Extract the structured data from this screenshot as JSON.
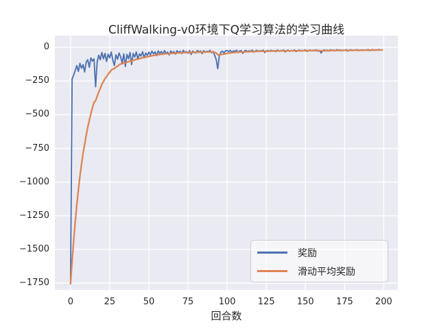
{
  "figure": {
    "background": "#ffffff",
    "axes_background": "#eaeaf2",
    "grid_color": "#ffffff",
    "text_color": "#262626"
  },
  "chart_data": {
    "type": "line",
    "title": "CliffWalking-v0环境下Q学习算法的学习曲线",
    "xlabel": "回合数",
    "ylabel": "",
    "grid": true,
    "legend_position": "lower right",
    "xlim": [
      -10,
      209
    ],
    "ylim": [
      -1800,
      87
    ],
    "xtick_values": [
      0,
      25,
      50,
      75,
      100,
      125,
      150,
      175,
      200
    ],
    "xtick_labels": [
      "0",
      "25",
      "50",
      "75",
      "100",
      "125",
      "150",
      "175",
      "200"
    ],
    "ytick_values": [
      0,
      -250,
      -500,
      -750,
      -1000,
      -1250,
      -1500,
      -1750
    ],
    "ytick_labels": [
      "0",
      "−250",
      "−500",
      "−750",
      "−1000",
      "−1250",
      "−1500",
      "−1750"
    ],
    "x_start": 0,
    "x_step": 1,
    "series": [
      {
        "name": "奖励",
        "color": "#4c72b0",
        "values": [
          -1755,
          -236,
          -205,
          -172,
          -135,
          -178,
          -118,
          -155,
          -128,
          -182,
          -108,
          -92,
          -148,
          -78,
          -102,
          -85,
          -292,
          -108,
          -58,
          -92,
          -38,
          -85,
          -45,
          -105,
          -50,
          -78,
          -35,
          -95,
          -135,
          -55,
          -88,
          -42,
          -70,
          -118,
          -48,
          -142,
          -52,
          -85,
          -38,
          -128,
          -45,
          -72,
          -34,
          -90,
          -48,
          -65,
          -32,
          -78,
          -42,
          -60,
          -36,
          -55,
          -28,
          -48,
          -33,
          -62,
          -26,
          -45,
          -30,
          -52,
          -24,
          -44,
          -35,
          -56,
          -27,
          -42,
          -31,
          -50,
          -25,
          -40,
          -29,
          -46,
          -22,
          -38,
          -31,
          -44,
          -24,
          -52,
          -28,
          -36,
          -42,
          -23,
          -34,
          -27,
          -46,
          -25,
          -38,
          -29,
          -33,
          -22,
          -40,
          -30,
          -58,
          -90,
          -158,
          -64,
          -36,
          -28,
          -42,
          -25,
          -24,
          -31,
          -22,
          -36,
          -26,
          -30,
          -21,
          -38,
          -27,
          -24,
          -45,
          -28,
          -22,
          -33,
          -25,
          -30,
          -20,
          -35,
          -26,
          -22,
          -31,
          -24,
          -28,
          -20,
          -38,
          -26,
          -23,
          -30,
          -21,
          -27,
          -24,
          -32,
          -20,
          -28,
          -23,
          -26,
          -19,
          -34,
          -24,
          -21,
          -29,
          -23,
          -26,
          -19,
          -31,
          -24,
          -20,
          -27,
          -22,
          -25,
          -18,
          -30,
          -23,
          -20,
          -26,
          -21,
          -24,
          -18,
          -28,
          -22,
          -42,
          -25,
          -19,
          -24,
          -20,
          -27,
          -18,
          -23,
          -20,
          -25,
          -17,
          -22,
          -19,
          -26,
          -20,
          -23,
          -17,
          -28,
          -21,
          -18,
          -24,
          -19,
          -22,
          -17,
          -25,
          -20,
          -18,
          -23,
          -19,
          -21,
          -16,
          -24,
          -19,
          -17,
          -22,
          -18,
          -20,
          -16,
          -21,
          -18
        ]
      },
      {
        "name": "滑动平均奖励",
        "color": "#dd8452",
        "derived_from": "奖励",
        "method": "exponential_moving_average",
        "alpha": 0.11
      }
    ]
  }
}
